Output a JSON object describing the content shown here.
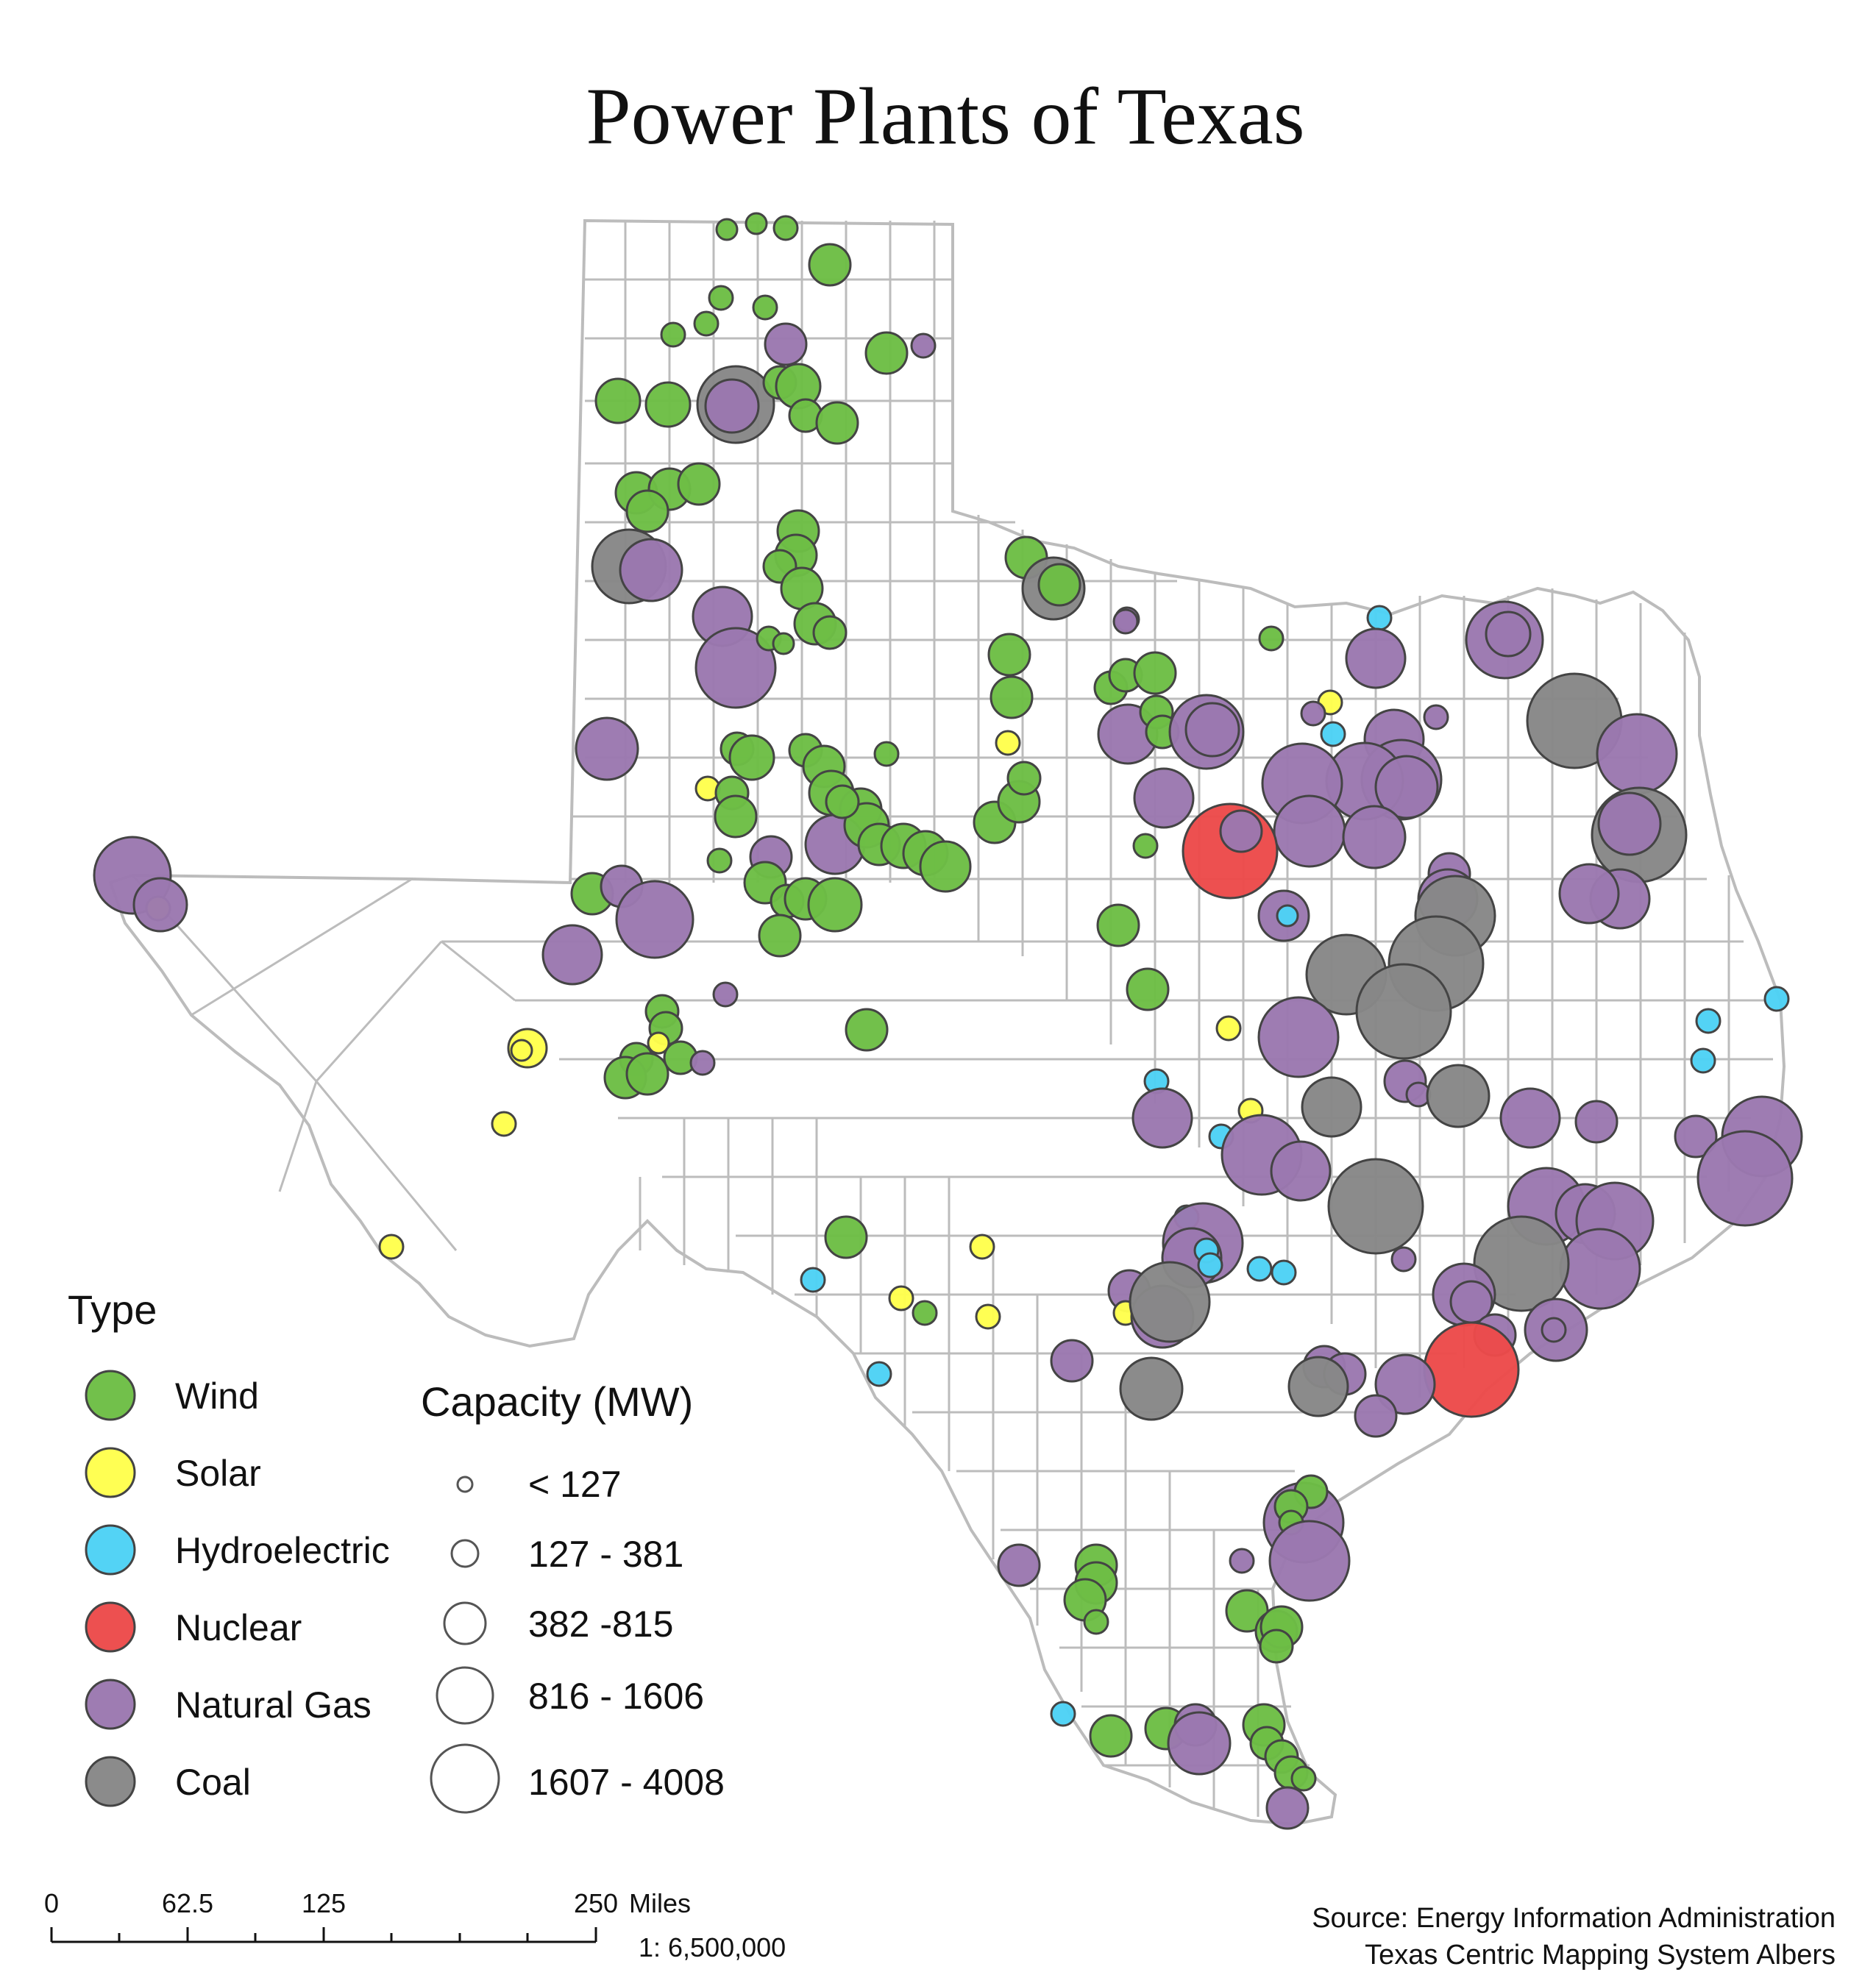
{
  "title": "Power Plants of Texas",
  "legend": {
    "type_title": "Type",
    "types": [
      {
        "key": "wind",
        "label": "Wind",
        "color": "#6dbe45"
      },
      {
        "key": "solar",
        "label": "Solar",
        "color": "#ffff4d"
      },
      {
        "key": "hydro",
        "label": "Hydroelectric",
        "color": "#4dd2f5"
      },
      {
        "key": "nuclear",
        "label": "Nuclear",
        "color": "#ec4a4a"
      },
      {
        "key": "gas",
        "label": "Natural Gas",
        "color": "#9b78b0"
      },
      {
        "key": "coal",
        "label": "Coal",
        "color": "#878787"
      }
    ],
    "capacity_title": "Capacity (MW)",
    "capacity_classes": [
      "< 127",
      "127 - 381",
      "382 -815",
      "816 - 1606",
      "1607 - 4008"
    ]
  },
  "scale_bar": {
    "ticks": [
      "0",
      "62.5",
      "125",
      "250"
    ],
    "unit": "Miles",
    "ratio": "1: 6,500,000"
  },
  "source_lines": [
    "Source: Energy Information Administration",
    "Texas Centric Mapping System Albers"
  ]
}
